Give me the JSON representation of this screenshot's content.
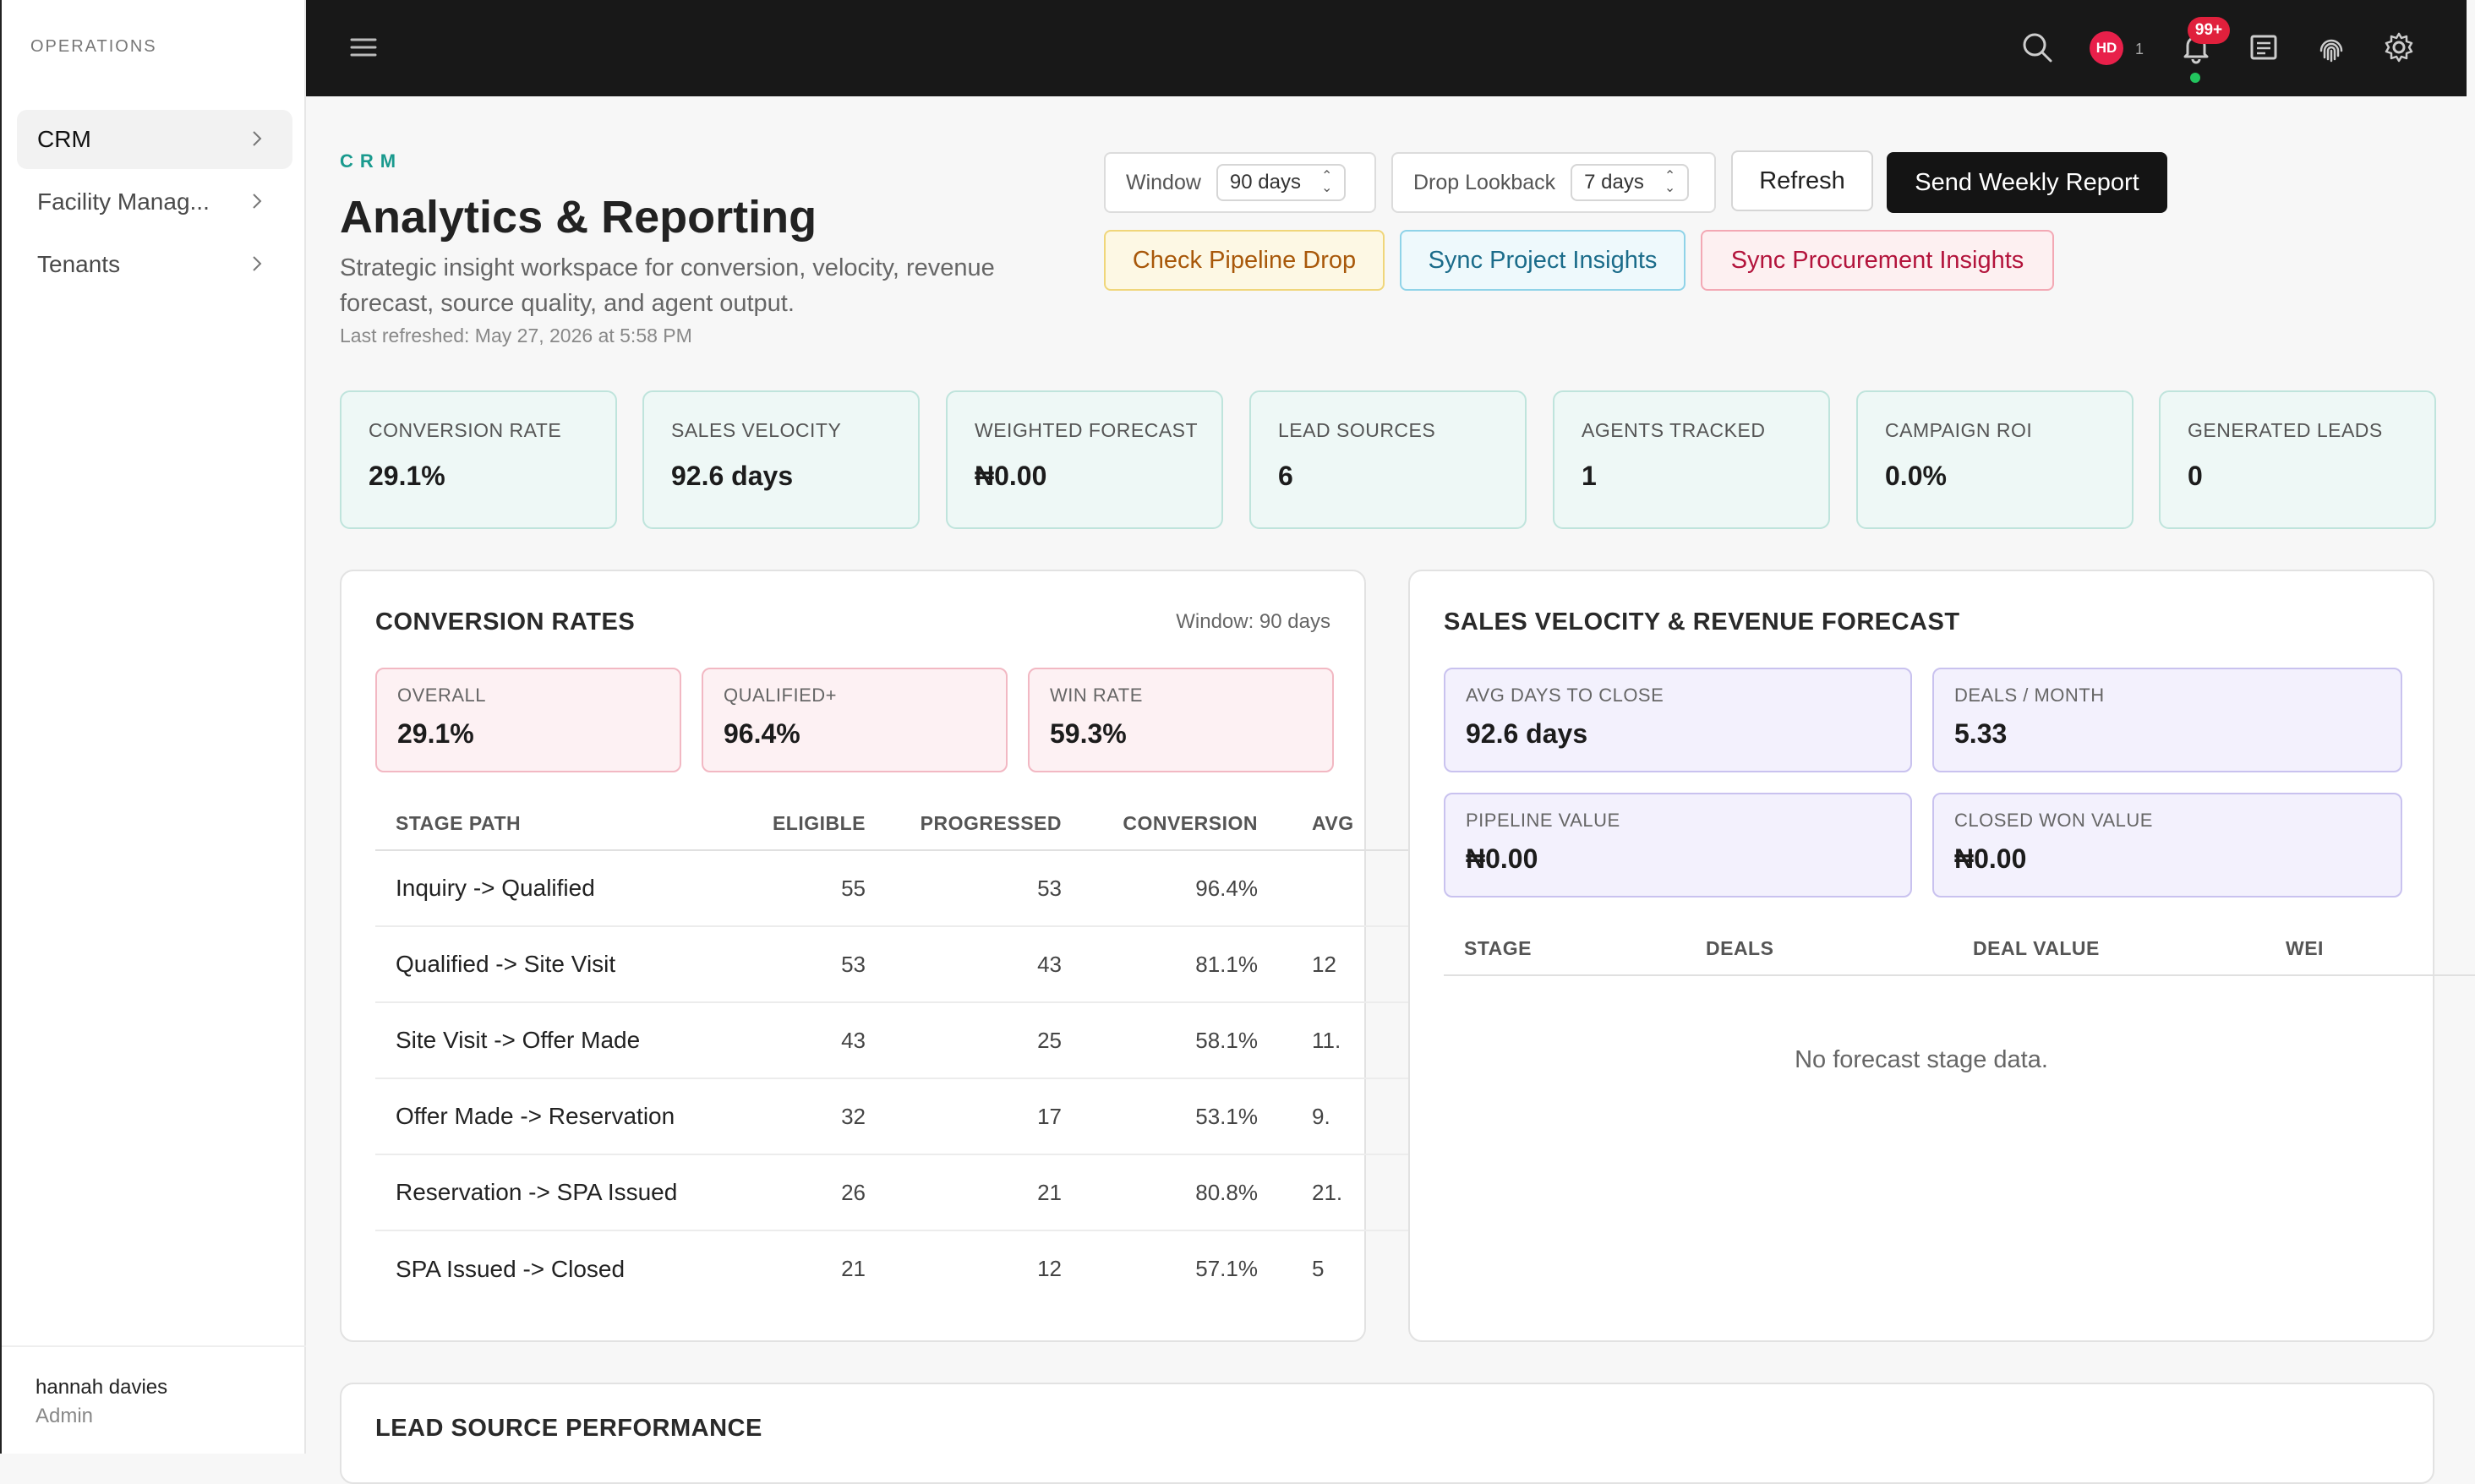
{
  "sidebar": {
    "section": "OPERATIONS",
    "items": [
      {
        "label": "CRM",
        "active": true
      },
      {
        "label": "Facility Manag..."
      },
      {
        "label": "Tenants"
      }
    ],
    "user": {
      "name": "hannah davies",
      "role": "Admin"
    }
  },
  "topbar": {
    "avatar_initials": "HD",
    "avatar_count": "1",
    "notification_badge": "99+"
  },
  "header": {
    "breadcrumb": "CRM",
    "title": "Analytics & Reporting",
    "subtitle": "Strategic insight workspace for conversion, velocity, revenue forecast, source quality, and agent output.",
    "last_refreshed": "Last refreshed: May 27, 2026 at 5:58 PM"
  },
  "controls": {
    "window_label": "Window",
    "window_value": "90 days",
    "drop_label": "Drop Lookback",
    "drop_value": "7 days",
    "refresh": "Refresh",
    "send_report": "Send Weekly Report",
    "check_pipeline": "Check Pipeline Drop",
    "sync_project": "Sync Project Insights",
    "sync_procurement": "Sync Procurement Insights"
  },
  "kpis": [
    {
      "label": "CONVERSION RATE",
      "value": "29.1%"
    },
    {
      "label": "SALES VELOCITY",
      "value": "92.6 days"
    },
    {
      "label": "WEIGHTED FORECAST",
      "value": "₦0.00"
    },
    {
      "label": "LEAD SOURCES",
      "value": "6"
    },
    {
      "label": "AGENTS TRACKED",
      "value": "1"
    },
    {
      "label": "CAMPAIGN ROI",
      "value": "0.0%"
    },
    {
      "label": "GENERATED LEADS",
      "value": "0"
    }
  ],
  "conversion": {
    "title": "CONVERSION RATES",
    "window": "Window: 90 days",
    "cards": [
      {
        "label": "OVERALL",
        "value": "29.1%"
      },
      {
        "label": "QUALIFIED+",
        "value": "96.4%"
      },
      {
        "label": "WIN RATE",
        "value": "59.3%"
      }
    ],
    "columns": [
      "STAGE PATH",
      "ELIGIBLE",
      "PROGRESSED",
      "CONVERSION",
      "AVG"
    ],
    "rows": [
      {
        "path": "Inquiry -> Qualified",
        "eligible": "55",
        "progressed": "53",
        "conversion": "96.4%",
        "avg": ""
      },
      {
        "path": "Qualified -> Site Visit",
        "eligible": "53",
        "progressed": "43",
        "conversion": "81.1%",
        "avg": "12"
      },
      {
        "path": "Site Visit -> Offer Made",
        "eligible": "43",
        "progressed": "25",
        "conversion": "58.1%",
        "avg": "11."
      },
      {
        "path": "Offer Made -> Reservation",
        "eligible": "32",
        "progressed": "17",
        "conversion": "53.1%",
        "avg": "9."
      },
      {
        "path": "Reservation -> SPA Issued",
        "eligible": "26",
        "progressed": "21",
        "conversion": "80.8%",
        "avg": "21."
      },
      {
        "path": "SPA Issued -> Closed",
        "eligible": "21",
        "progressed": "12",
        "conversion": "57.1%",
        "avg": "5"
      }
    ]
  },
  "velocity": {
    "title": "SALES VELOCITY & REVENUE FORECAST",
    "cards": [
      {
        "label": "AVG DAYS TO CLOSE",
        "value": "92.6 days"
      },
      {
        "label": "DEALS / MONTH",
        "value": "5.33"
      },
      {
        "label": "PIPELINE VALUE",
        "value": "₦0.00"
      },
      {
        "label": "CLOSED WON VALUE",
        "value": "₦0.00"
      }
    ],
    "columns": [
      "STAGE",
      "DEALS",
      "DEAL VALUE",
      "WEI"
    ],
    "empty": "No forecast stage data."
  },
  "lead_source": {
    "title": "LEAD SOURCE PERFORMANCE"
  }
}
